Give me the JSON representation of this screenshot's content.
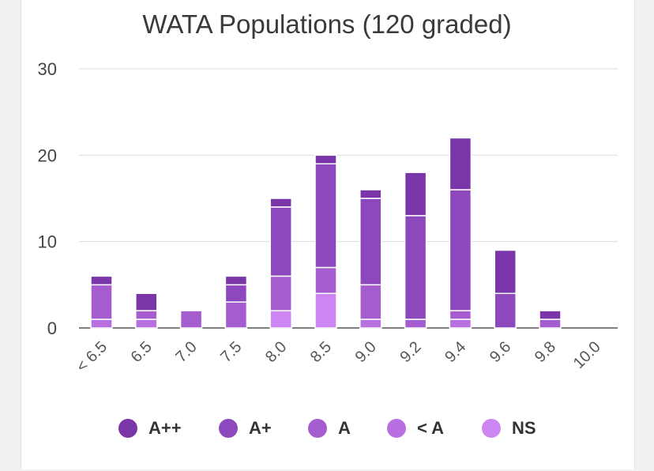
{
  "chart_data": {
    "type": "bar",
    "stacked": true,
    "title": "WATA Populations (120 graded)",
    "xlabel": "",
    "ylabel": "",
    "ylim": [
      0,
      30
    ],
    "yticks": [
      0,
      10,
      20,
      30
    ],
    "grid": true,
    "legend_position": "bottom",
    "categories": [
      "< 6.5",
      "6.5",
      "7.0",
      "7.5",
      "8.0",
      "8.5",
      "9.0",
      "9.2",
      "9.4",
      "9.6",
      "9.8",
      "10.0"
    ],
    "series": [
      {
        "name": "NS",
        "color": "#cd86f2",
        "values": [
          0,
          0,
          0,
          0,
          2,
          4,
          0,
          0,
          0,
          0,
          0,
          0
        ]
      },
      {
        "name": "< A",
        "color": "#b870e0",
        "values": [
          1,
          1,
          0,
          0,
          0,
          0,
          1,
          0,
          1,
          0,
          0,
          0
        ]
      },
      {
        "name": "A",
        "color": "#a45ccf",
        "values": [
          4,
          1,
          2,
          3,
          4,
          3,
          4,
          1,
          1,
          0,
          1,
          0
        ]
      },
      {
        "name": "A+",
        "color": "#8e48bd",
        "values": [
          0,
          0,
          0,
          2,
          8,
          12,
          10,
          12,
          14,
          4,
          0,
          0
        ]
      },
      {
        "name": "A++",
        "color": "#7a36a8",
        "values": [
          1,
          2,
          0,
          1,
          1,
          1,
          1,
          5,
          6,
          5,
          1,
          0
        ]
      }
    ]
  },
  "legend_order": [
    "A++",
    "A+",
    "A",
    "< A",
    "NS"
  ]
}
